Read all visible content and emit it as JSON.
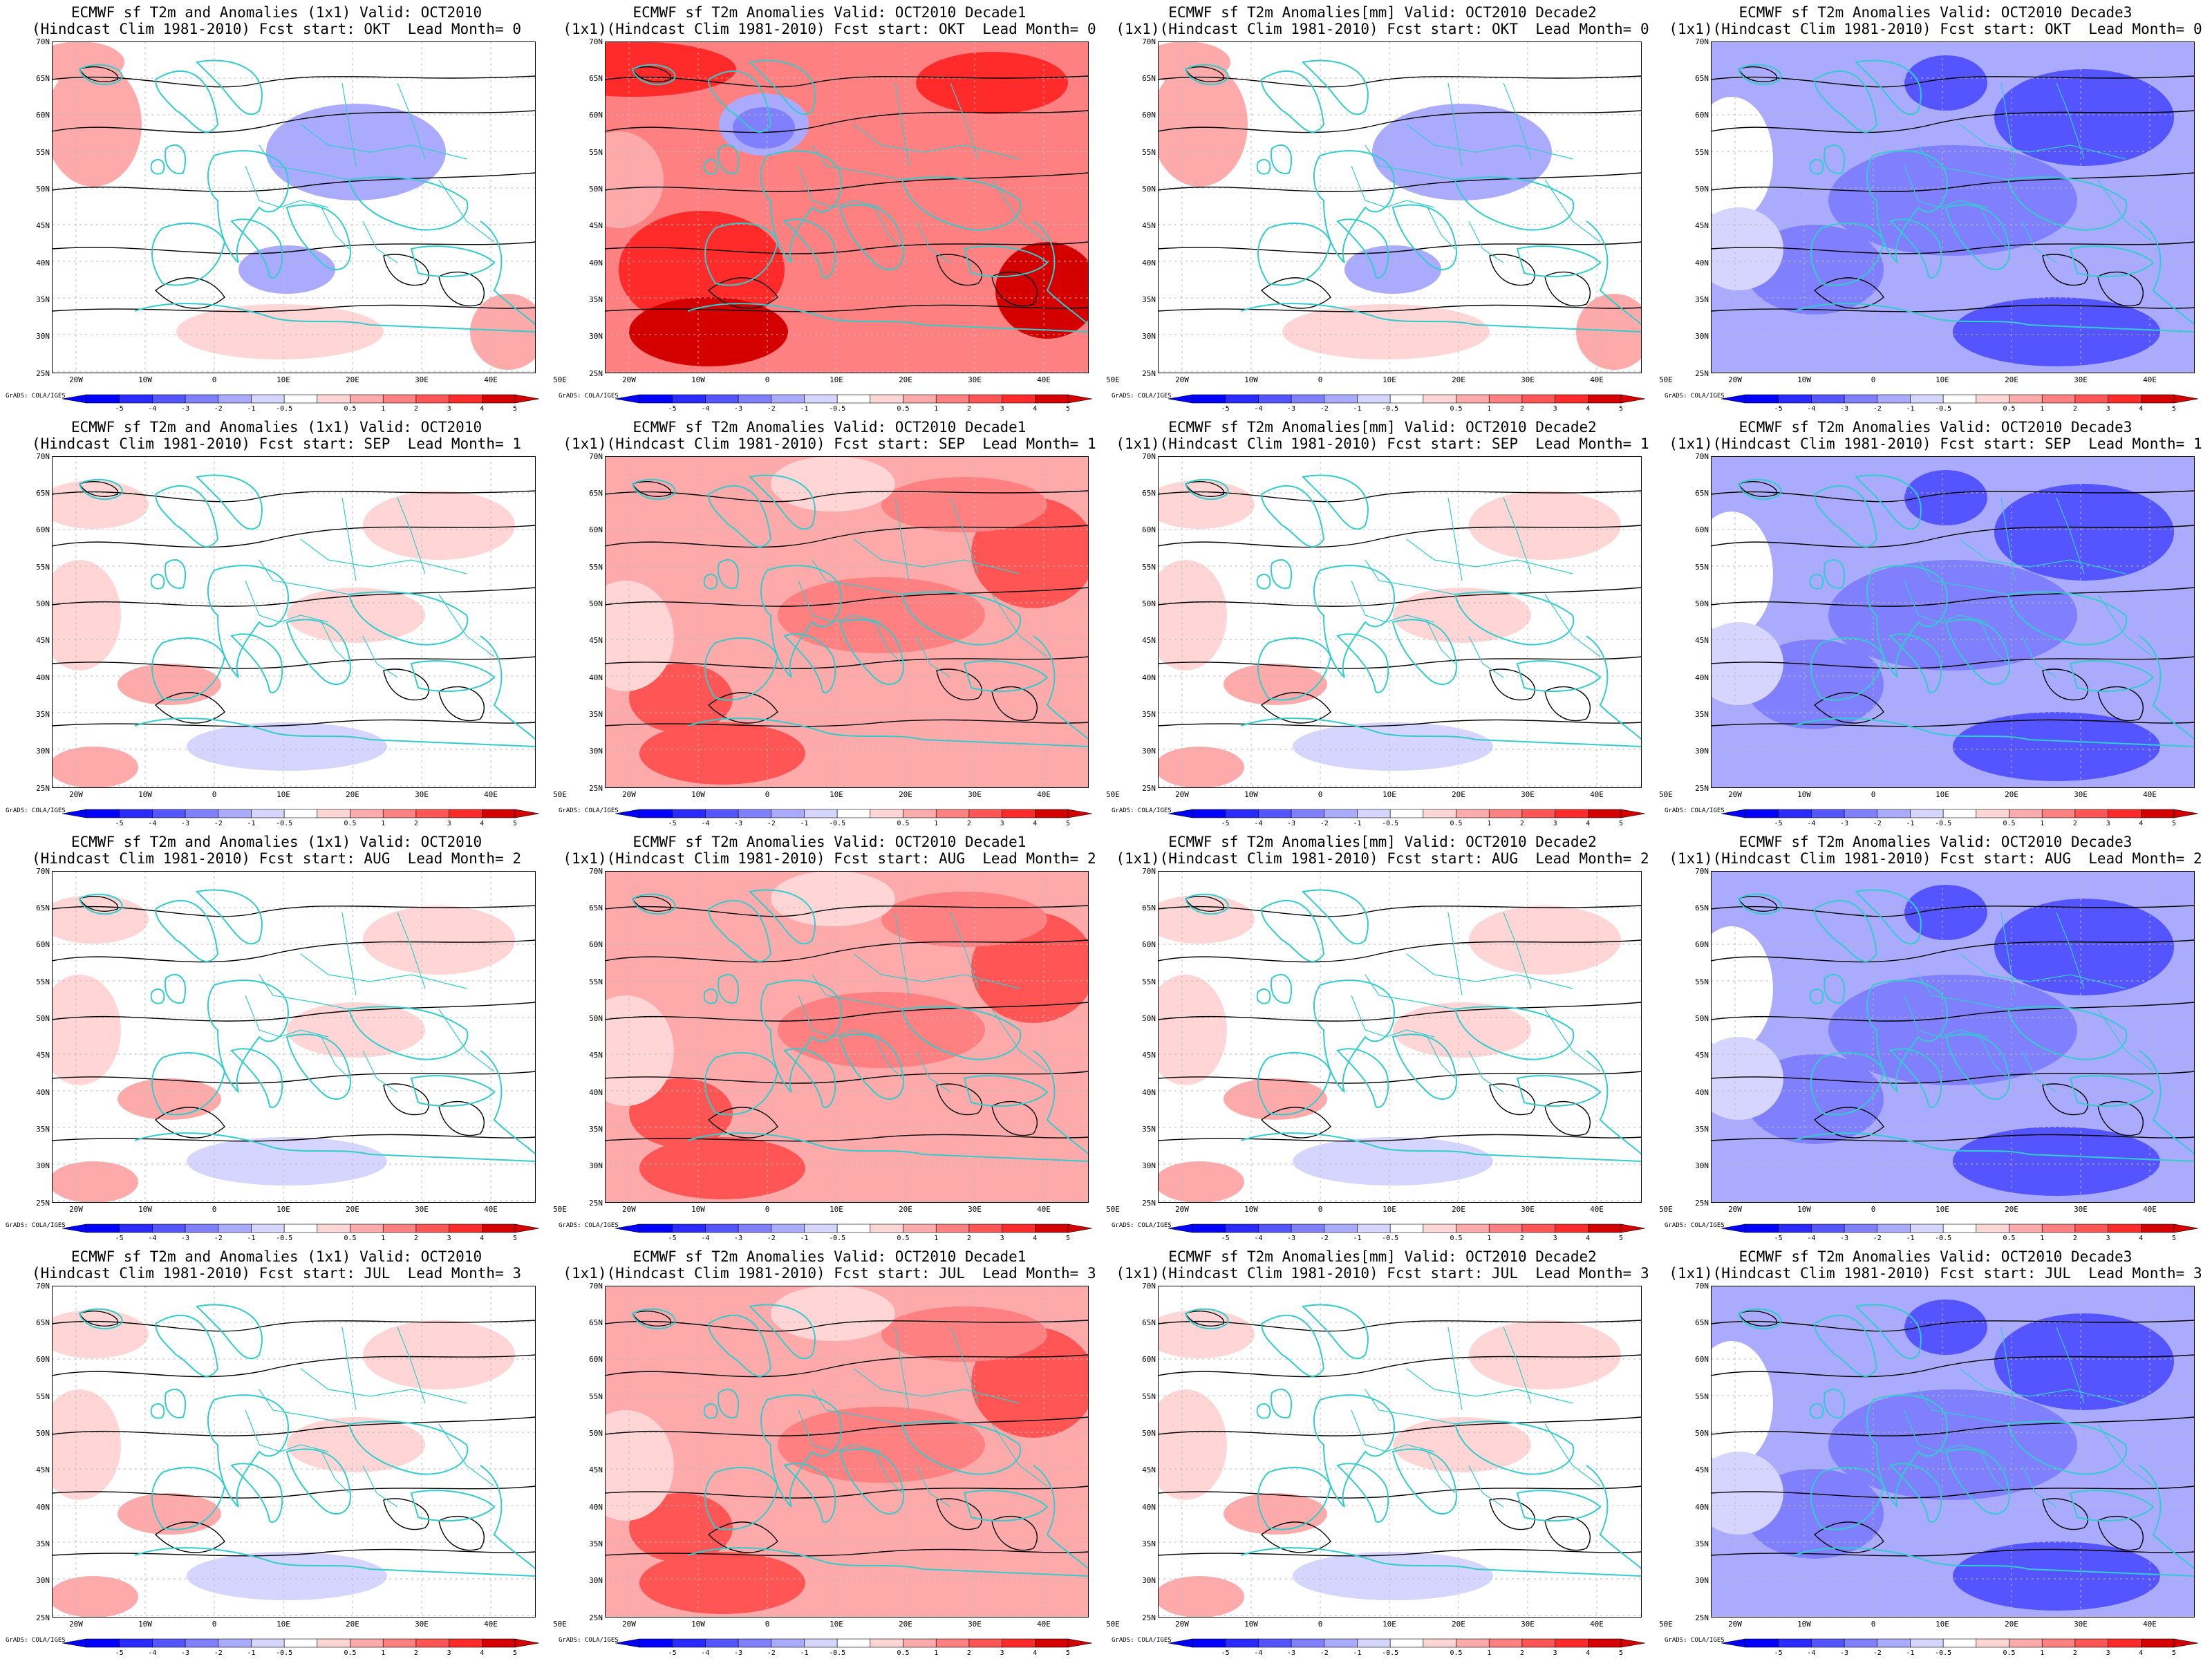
{
  "figure": {
    "credit": "GrADS: COLA/IGES",
    "lat_labels": [
      "70N",
      "65N",
      "60N",
      "55N",
      "50N",
      "45N",
      "40N",
      "35N",
      "30N",
      "25N"
    ],
    "lon_labels": [
      "20W",
      "10W",
      "0",
      "10E",
      "20E",
      "30E",
      "40E",
      "50E"
    ],
    "colorbar_labels": [
      "-5",
      "-4",
      "-3",
      "-2",
      "-1",
      "-0.5",
      "0.5",
      "1",
      "2",
      "3",
      "4",
      "5"
    ],
    "colors": {
      "neg5": "#0000ff",
      "neg4": "#2a2aff",
      "neg3": "#5555ff",
      "neg2": "#8080ff",
      "neg1": "#aaaaff",
      "neg05": "#d5d5ff",
      "zero": "#ffffff",
      "pos05": "#ffd5d5",
      "pos1": "#ffaaaa",
      "pos2": "#ff8080",
      "pos3": "#ff5555",
      "pos4": "#ff2a2a",
      "pos5": "#d40000",
      "coast": "#33cccc",
      "contour": "#000000"
    }
  },
  "panels": [
    {
      "line1": "ECMWF sf T2m and Anomalies (1x1) Valid: OCT2010",
      "line2": "(Hindcast Clim 1981-2010) Fcst start: OKT  Lead Month= 0",
      "regime": "mixed"
    },
    {
      "line1": "ECMWF sf T2m Anomalies Valid: OCT2010 Decade1",
      "line2": "(1x1)(Hindcast Clim 1981-2010) Fcst start: OKT  Lead Month= 0",
      "regime": "hot"
    },
    {
      "line1": "ECMWF sf T2m Anomalies[mm] Valid: OCT2010 Decade2",
      "line2": "(1x1)(Hindcast Clim 1981-2010) Fcst start: OKT  Lead Month= 0",
      "regime": "mixed"
    },
    {
      "line1": "ECMWF sf T2m Anomalies Valid: OCT2010 Decade3",
      "line2": "(1x1)(Hindcast Clim 1981-2010) Fcst start: OKT  Lead Month= 0",
      "regime": "cold"
    },
    {
      "line1": "ECMWF sf T2m and Anomalies (1x1) Valid: OCT2010",
      "line2": "(Hindcast Clim 1981-2010) Fcst start: SEP  Lead Month= 1",
      "regime": "mild"
    },
    {
      "line1": "ECMWF sf T2m Anomalies Valid: OCT2010 Decade1",
      "line2": "(1x1)(Hindcast Clim 1981-2010) Fcst start: SEP  Lead Month= 1",
      "regime": "warm"
    },
    {
      "line1": "ECMWF sf T2m Anomalies[mm] Valid: OCT2010 Decade2",
      "line2": "(1x1)(Hindcast Clim 1981-2010) Fcst start: SEP  Lead Month= 1",
      "regime": "mild"
    },
    {
      "line1": "ECMWF sf T2m Anomalies Valid: OCT2010 Decade3",
      "line2": "(1x1)(Hindcast Clim 1981-2010) Fcst start: SEP  Lead Month= 1",
      "regime": "cold"
    },
    {
      "line1": "ECMWF sf T2m and Anomalies (1x1) Valid: OCT2010",
      "line2": "(Hindcast Clim 1981-2010) Fcst start: AUG  Lead Month= 2",
      "regime": "mild"
    },
    {
      "line1": "ECMWF sf T2m Anomalies Valid: OCT2010 Decade1",
      "line2": "(1x1)(Hindcast Clim 1981-2010) Fcst start: AUG  Lead Month= 2",
      "regime": "warm"
    },
    {
      "line1": "ECMWF sf T2m Anomalies[mm] Valid: OCT2010 Decade2",
      "line2": "(1x1)(Hindcast Clim 1981-2010) Fcst start: AUG  Lead Month= 2",
      "regime": "mild"
    },
    {
      "line1": "ECMWF sf T2m Anomalies Valid: OCT2010 Decade3",
      "line2": "(1x1)(Hindcast Clim 1981-2010) Fcst start: AUG  Lead Month= 2",
      "regime": "cold"
    },
    {
      "line1": "ECMWF sf T2m and Anomalies (1x1) Valid: OCT2010",
      "line2": "(Hindcast Clim 1981-2010) Fcst start: JUL  Lead Month= 3",
      "regime": "mild"
    },
    {
      "line1": "ECMWF sf T2m Anomalies Valid: OCT2010 Decade1",
      "line2": "(1x1)(Hindcast Clim 1981-2010) Fcst start: JUL  Lead Month= 3",
      "regime": "warm"
    },
    {
      "line1": "ECMWF sf T2m Anomalies[mm] Valid: OCT2010 Decade2",
      "line2": "(1x1)(Hindcast Clim 1981-2010) Fcst start: JUL  Lead Month= 3",
      "regime": "mild"
    },
    {
      "line1": "ECMWF sf T2m Anomalies Valid: OCT2010 Decade3",
      "line2": "(1x1)(Hindcast Clim 1981-2010) Fcst start: JUL  Lead Month= 3",
      "regime": "cold"
    }
  ]
}
